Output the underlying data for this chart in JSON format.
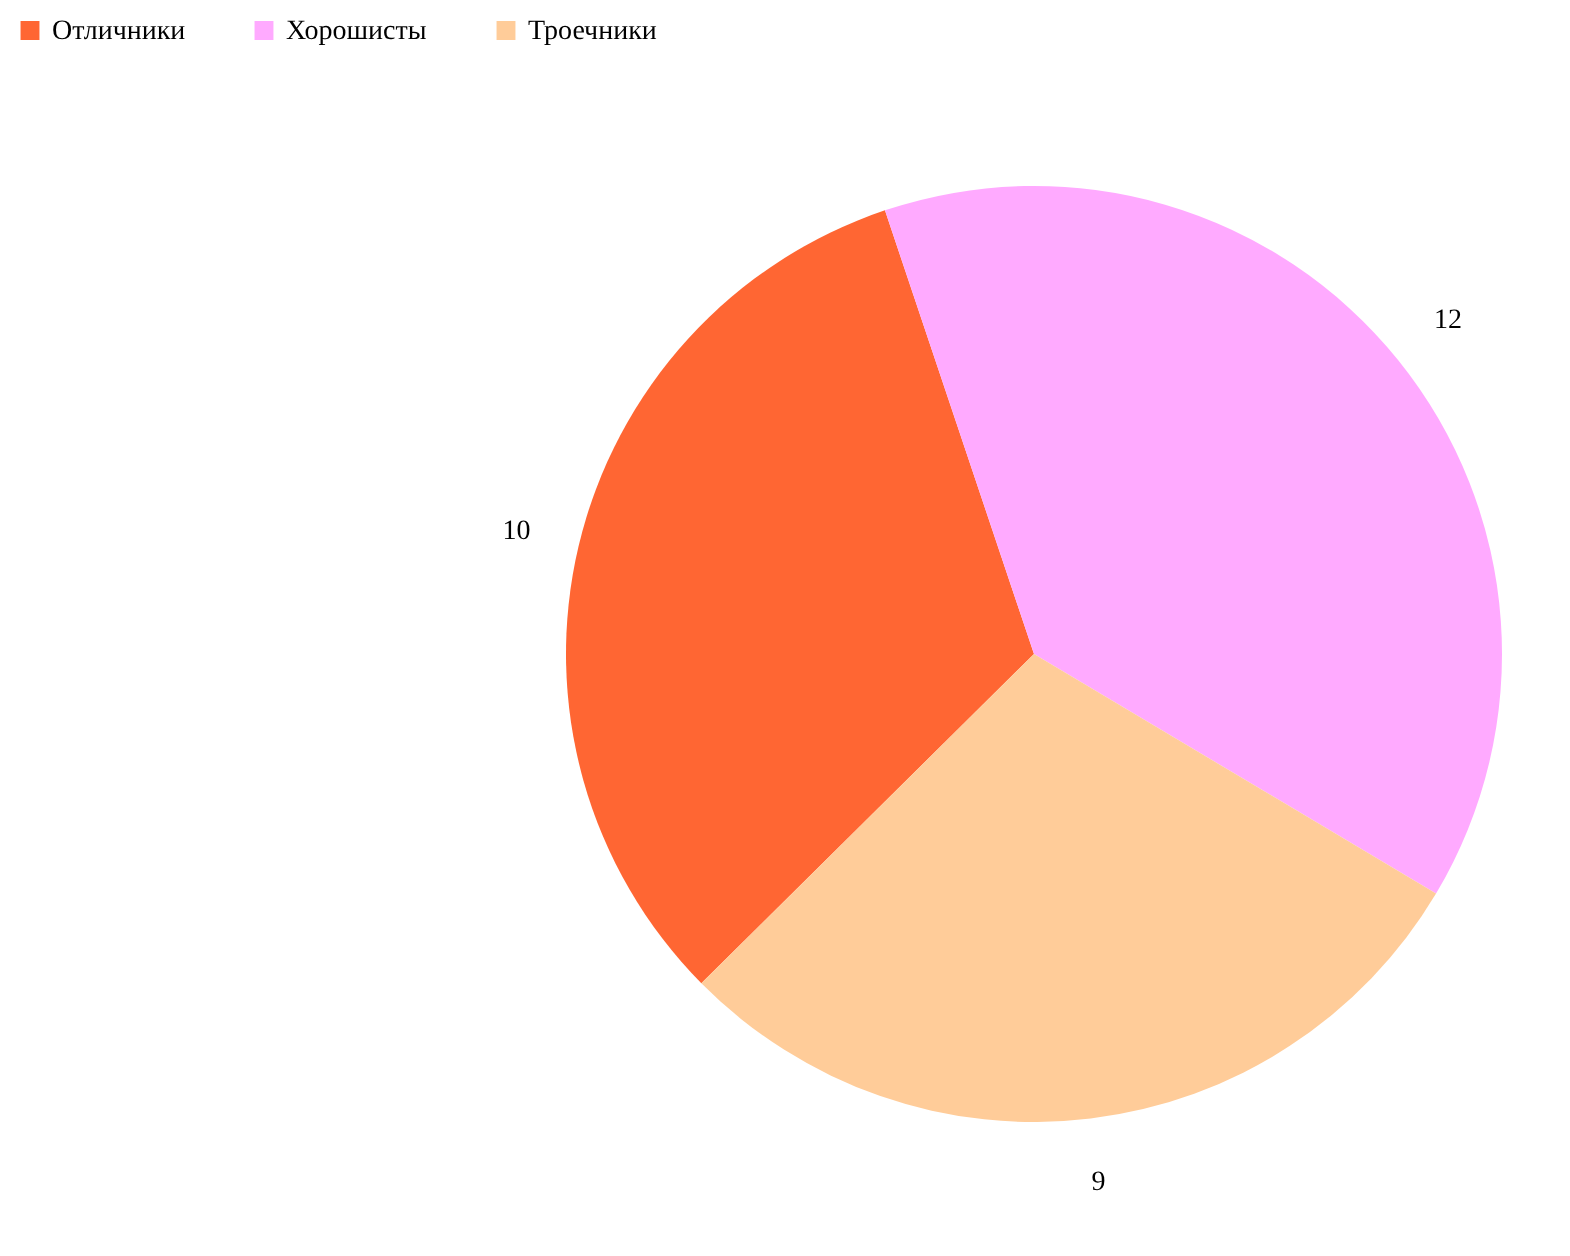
{
  "chart_data": {
    "type": "pie",
    "categories": [
      "Отличники",
      "Хорошисты",
      "Троечники"
    ],
    "values": [
      10,
      12,
      9
    ],
    "colors": [
      "#ff6633",
      "#ffaaff",
      "#ffcc99"
    ],
    "data_labels": true,
    "legend": "top left"
  }
}
